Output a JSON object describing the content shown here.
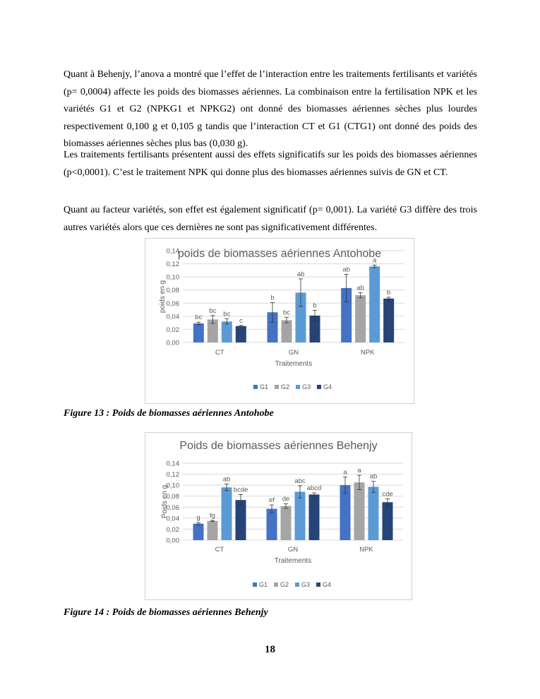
{
  "paragraphs": [
    "Quant à Behenjy, l’anova a montré que l’effet de l’interaction entre les traitements fertilisants et variétés (p= 0,0004) affecte les poids des biomasses aériennes. La combinaison entre la fertilisation NPK et les variétés G1 et G2 (NPKG1 et NPKG2) ont donné des biomasses aériennes sèches plus lourdes respectivement 0,100 g et 0,105 g tandis que l’interaction CT et G1 (CTG1) ont donné des poids des biomasses aériennes sèches plus bas (0,030 g).",
    "Les traitements fertilisants présentent aussi des effets significatifs sur les poids des biomasses aériennes (p<0,0001). C’est le traitement NPK qui donne plus des biomasses aériennes suivis de GN et CT.",
    "Quant au facteur variétés, son effet est également significatif (p= 0,001). La variété G3 diffère des trois autres variétés alors que ces dernières ne sont pas significativement différentes."
  ],
  "captions": [
    "Figure 13 : Poids de biomasses aériennes Antohobe",
    "Figure 14 : Poids de biomasses aériennes Behenjy"
  ],
  "page_number": "18",
  "chart_data": [
    {
      "type": "bar",
      "title": "poids de biomasses aériennes Antohobe",
      "xlabel": "Traitements",
      "ylabel": "poids en g",
      "ylim": [
        0,
        0.14
      ],
      "yticks": [
        "0,00",
        "0,02",
        "0,04",
        "0,06",
        "0,08",
        "0,10",
        "0,12",
        "0,14"
      ],
      "grid": true,
      "legend": "bottom",
      "categories": [
        "CT",
        "GN",
        "NPK"
      ],
      "series": [
        {
          "name": "G1",
          "color": "#4472C4",
          "values": [
            0.029,
            0.046,
            0.083
          ],
          "errors": [
            0.002,
            0.015,
            0.021
          ],
          "labels": [
            "bc",
            "b",
            "ab"
          ]
        },
        {
          "name": "G2",
          "color": "#A5A5A5",
          "values": [
            0.035,
            0.034,
            0.072
          ],
          "errors": [
            0.006,
            0.004,
            0.004
          ],
          "labels": [
            "bc",
            "bc",
            "ab"
          ]
        },
        {
          "name": "G3",
          "color": "#5B9BD5",
          "values": [
            0.032,
            0.076,
            0.116
          ],
          "errors": [
            0.004,
            0.021,
            0.002
          ],
          "labels": [
            "bc",
            "ab",
            "a"
          ]
        },
        {
          "name": "G4",
          "color": "#264478",
          "values": [
            0.025,
            0.041,
            0.067
          ],
          "errors": [
            0.001,
            0.008,
            0.002
          ],
          "labels": [
            "c",
            "b",
            "b"
          ]
        }
      ]
    },
    {
      "type": "bar",
      "title": "Poids de biomasses aériennes Behenjy",
      "xlabel": "Traitements",
      "ylabel": "Poids en g",
      "ylim": [
        0,
        0.14
      ],
      "yticks": [
        "0,00",
        "0,02",
        "0,04",
        "0,06",
        "0,08",
        "0,10",
        "0,12",
        "0,14"
      ],
      "grid": true,
      "legend": "bottom",
      "categories": [
        "CT",
        "GN",
        "NPK"
      ],
      "series": [
        {
          "name": "G1",
          "color": "#4472C4",
          "values": [
            0.03,
            0.057,
            0.1
          ],
          "errors": [
            0.002,
            0.007,
            0.015
          ],
          "labels": [
            "g",
            "ef",
            "a"
          ]
        },
        {
          "name": "G2",
          "color": "#A5A5A5",
          "values": [
            0.035,
            0.062,
            0.105
          ],
          "errors": [
            0.001,
            0.004,
            0.013
          ],
          "labels": [
            "fg",
            "de",
            "a"
          ]
        },
        {
          "name": "G3",
          "color": "#5B9BD5",
          "values": [
            0.096,
            0.088,
            0.097
          ],
          "errors": [
            0.006,
            0.011,
            0.01
          ],
          "labels": [
            "ab",
            "abc",
            "ab"
          ]
        },
        {
          "name": "G4",
          "color": "#264478",
          "values": [
            0.073,
            0.083,
            0.069
          ],
          "errors": [
            0.01,
            0.003,
            0.006
          ],
          "labels": [
            "bcde",
            "abcd",
            "cde"
          ]
        }
      ]
    }
  ]
}
